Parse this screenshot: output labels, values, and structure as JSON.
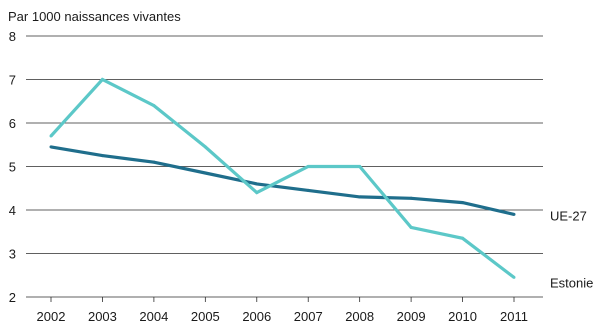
{
  "chart_data": {
    "type": "line",
    "title": "",
    "ylabel": "Par 1000 naissances vivantes",
    "xlabel": "",
    "x": [
      "2002",
      "2003",
      "2004",
      "2005",
      "2006",
      "2007",
      "2008",
      "2009",
      "2010",
      "2011"
    ],
    "ylim": [
      2,
      8
    ],
    "yticks": [
      "2",
      "3",
      "4",
      "5",
      "6",
      "7",
      "8"
    ],
    "grid": "horizontal",
    "legend": "direct labels at right end of lines",
    "series": [
      {
        "name": "UE-27",
        "color": "#1f6e8c",
        "values": [
          5.45,
          5.25,
          5.1,
          4.85,
          4.6,
          4.45,
          4.3,
          4.27,
          4.17,
          3.9
        ]
      },
      {
        "name": "Estonie",
        "color": "#5cc8c8",
        "values": [
          5.7,
          7.0,
          6.4,
          5.45,
          4.4,
          5.0,
          5.0,
          3.6,
          3.35,
          2.45
        ]
      }
    ]
  }
}
